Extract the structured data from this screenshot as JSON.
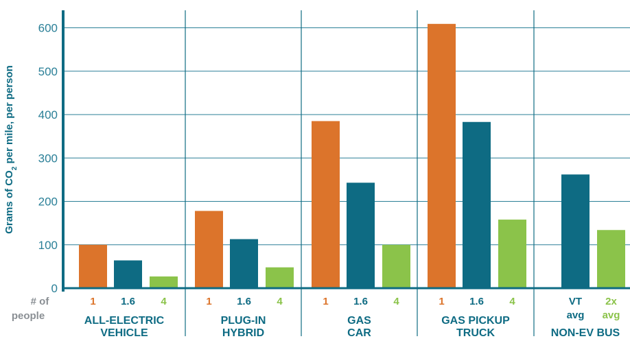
{
  "chart_data": {
    "type": "bar",
    "ylabel": "Grams of CO₂ per mile, per person",
    "ylim": [
      0,
      630
    ],
    "yticks": [
      "0",
      "100",
      "200",
      "300",
      "400",
      "500",
      "600"
    ],
    "people_label": [
      "# of",
      "people"
    ],
    "grid": true,
    "colors": {
      "1": "#dc742b",
      "1.6": "#0e6b83",
      "4": "#8bc34a",
      "VT avg": "#0e6b83",
      "2x avg": "#8bc34a",
      "axis": "#0e6b83"
    },
    "groups": [
      {
        "label": [
          "ALL-ELECTRIC",
          "VEHICLE"
        ],
        "bars": [
          {
            "people": "1",
            "value": 100
          },
          {
            "people": "1.6",
            "value": 64
          },
          {
            "people": "4",
            "value": 27
          }
        ]
      },
      {
        "label": [
          "PLUG-IN",
          "HYBRID"
        ],
        "bars": [
          {
            "people": "1",
            "value": 178
          },
          {
            "people": "1.6",
            "value": 113
          },
          {
            "people": "4",
            "value": 48
          }
        ]
      },
      {
        "label": [
          "GAS",
          "CAR"
        ],
        "bars": [
          {
            "people": "1",
            "value": 385
          },
          {
            "people": "1.6",
            "value": 243
          },
          {
            "people": "4",
            "value": 100
          }
        ]
      },
      {
        "label": [
          "GAS PICKUP",
          "TRUCK"
        ],
        "bars": [
          {
            "people": "1",
            "value": 609
          },
          {
            "people": "1.6",
            "value": 383
          },
          {
            "people": "4",
            "value": 158
          }
        ]
      },
      {
        "label": [
          "NON-EV BUS"
        ],
        "bars": [
          {
            "people": "VT|avg",
            "value": 262
          },
          {
            "people": "2x|avg",
            "value": 134
          }
        ]
      }
    ]
  }
}
